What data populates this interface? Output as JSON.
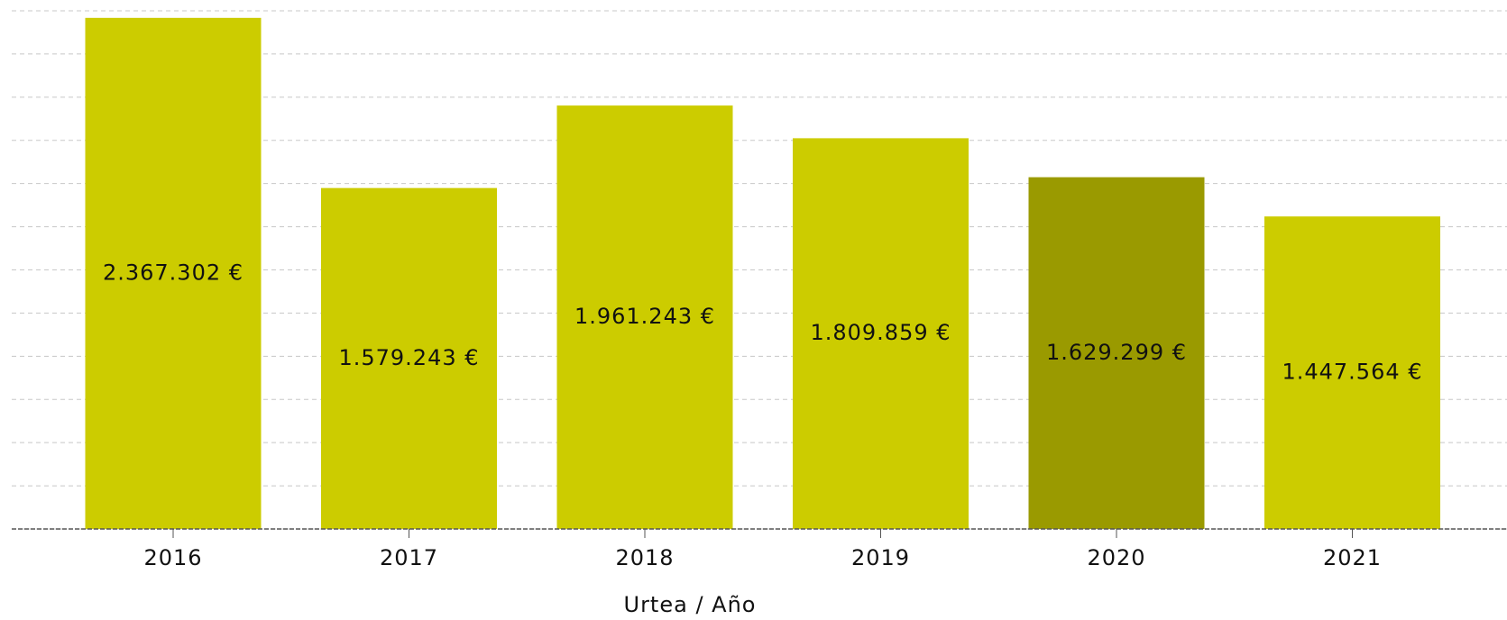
{
  "chart_data": {
    "type": "bar",
    "x_label": "Urtea / Año",
    "categories": [
      "2016",
      "2017",
      "2018",
      "2019",
      "2020",
      "2021"
    ],
    "values": [
      2367302,
      1579243,
      1961243,
      1809859,
      1629299,
      1447564
    ],
    "value_labels": [
      "2.367.302 €",
      "1.579.243 €",
      "1.961.243 €",
      "1.809.859 €",
      "1.629.299 €",
      "1.447.564 €"
    ],
    "colors": [
      "#cccc00",
      "#cccc00",
      "#cccc00",
      "#cccc00",
      "#9a9a00",
      "#cccc00"
    ],
    "ylim": [
      0,
      2400000
    ],
    "yticks": [
      0,
      200000,
      400000,
      600000,
      800000,
      1000000,
      1200000,
      1400000,
      1600000,
      1800000,
      2000000,
      2200000,
      2400000
    ],
    "grid": true
  }
}
